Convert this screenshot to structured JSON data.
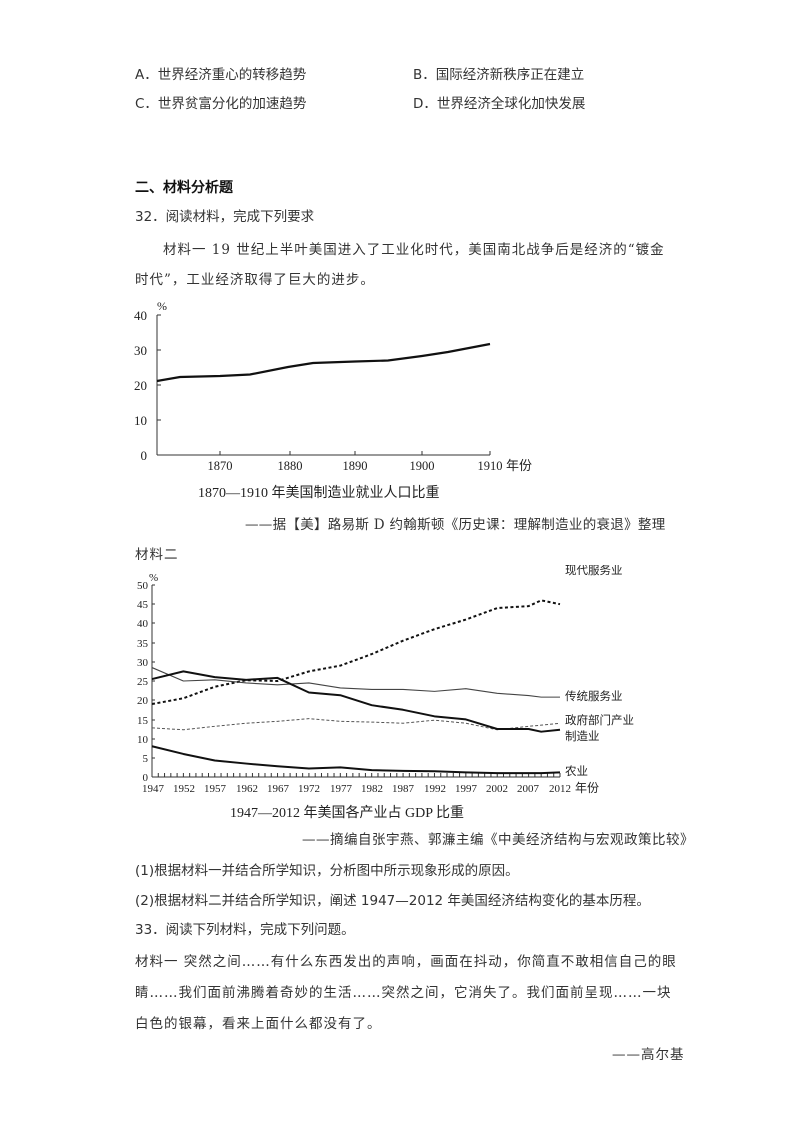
{
  "options": [
    {
      "label": "A．世界经济重心的转移趋势"
    },
    {
      "label": "B．国际经济新秩序正在建立"
    },
    {
      "label": "C．世界贫富分化的加速趋势"
    },
    {
      "label": "D．世界经济全球化加快发展"
    }
  ],
  "section_title": "二、材料分析题",
  "q32": {
    "title": "32．阅读材料，完成下列要求",
    "material1_line1": "材料一  19 世纪上半叶美国进入了工业化时代，美国南北战争后是经济的“镀金",
    "material1_line2": "时代”，工业经济取得了巨大的进步。",
    "source1": "——据【美】路易斯 D 约翰斯顿《历史课：理解制造业的衰退》整理",
    "material2_label": "材料二",
    "source2": "——摘编自张宇燕、郭濂主编《中美经济结构与宏观政策比较》",
    "sub1": "(1)根据材料一并结合所学知识，分析图中所示现象形成的原因。",
    "sub2": "(2)根据材料二并结合所学知识，阐述 1947—2012 年美国经济结构变化的基本历程。"
  },
  "q33": {
    "title": "33．阅读下列材料，完成下列问题。",
    "line1": "材料一  突然之间……有什么东西发出的声响，画面在抖动，你简直不敢相信自己的眼",
    "line2": "睛……我们面前沸腾着奇妙的生活……突然之间，它消失了。我们面前呈现……一块",
    "line3": "白色的银幕，看来上面什么都没有了。",
    "attribution": "——高尔基"
  },
  "chart_data": [
    {
      "type": "line",
      "title": "1870—1910 年美国制造业就业人口比重",
      "xlabel": "年份",
      "ylabel": "%",
      "ylim": [
        0,
        40
      ],
      "yticks": [
        "0",
        "10",
        "20",
        "30",
        "40"
      ],
      "xticks": [
        "1870",
        "1880",
        "1890",
        "1900",
        "1910"
      ],
      "grid": false,
      "x": [
        1861,
        1865,
        1870,
        1875,
        1880,
        1884,
        1890,
        1895,
        1900,
        1905,
        1910
      ],
      "values": [
        21,
        22,
        22.5,
        23,
        24.5,
        26,
        26.5,
        26.8,
        28,
        29.5,
        31.5
      ]
    },
    {
      "type": "line",
      "title": "1947—2012 年美国各产业占 GDP 比重",
      "xlabel": "年份",
      "ylabel": "%",
      "ylim": [
        0,
        50
      ],
      "yticks": [
        "0",
        "5",
        "10",
        "15",
        "20",
        "25",
        "30",
        "35",
        "40",
        "45",
        "50"
      ],
      "xticks": [
        "1947",
        "1952",
        "1957",
        "1962",
        "1967",
        "1972",
        "1977",
        "1982",
        "1987",
        "1992",
        "1997",
        "2002",
        "2007",
        "2012"
      ],
      "grid": false,
      "legend_position": "right-inline",
      "x": [
        1947,
        1952,
        1957,
        1962,
        1967,
        1972,
        1977,
        1982,
        1987,
        1992,
        1997,
        2002,
        2007,
        2009,
        2012
      ],
      "series": [
        {
          "name": "现代服务业",
          "style": "dashed-bold",
          "values": [
            19,
            20.5,
            23.5,
            25.2,
            25,
            27.5,
            29,
            32,
            35.5,
            38.5,
            41,
            44,
            44.5,
            46,
            45
          ]
        },
        {
          "name": "传统服务业",
          "style": "solid-thin",
          "values": [
            28.5,
            25,
            25.3,
            24.5,
            24,
            24.5,
            23.2,
            22.8,
            22.8,
            22.3,
            23,
            21.8,
            21.2,
            20.8,
            20.8
          ]
        },
        {
          "name": "政府部门产业",
          "style": "dashed-thin",
          "values": [
            12.8,
            12.3,
            13.2,
            14,
            14.5,
            15.2,
            14.5,
            14.3,
            14,
            14.8,
            14,
            12.3,
            13.2,
            13.5,
            14
          ]
        },
        {
          "name": "制造业",
          "style": "solid-bold",
          "values": [
            25.5,
            27.5,
            26,
            25.3,
            25.8,
            22,
            21.3,
            18.7,
            17.5,
            15.8,
            15,
            12.5,
            12.5,
            11.8,
            12.3
          ]
        },
        {
          "name": "农业",
          "style": "solid-bold",
          "values": [
            8,
            6,
            4.3,
            3.5,
            2.8,
            2.2,
            2.5,
            1.8,
            1.6,
            1.5,
            1.2,
            1,
            1,
            1,
            1.2
          ]
        }
      ]
    }
  ]
}
